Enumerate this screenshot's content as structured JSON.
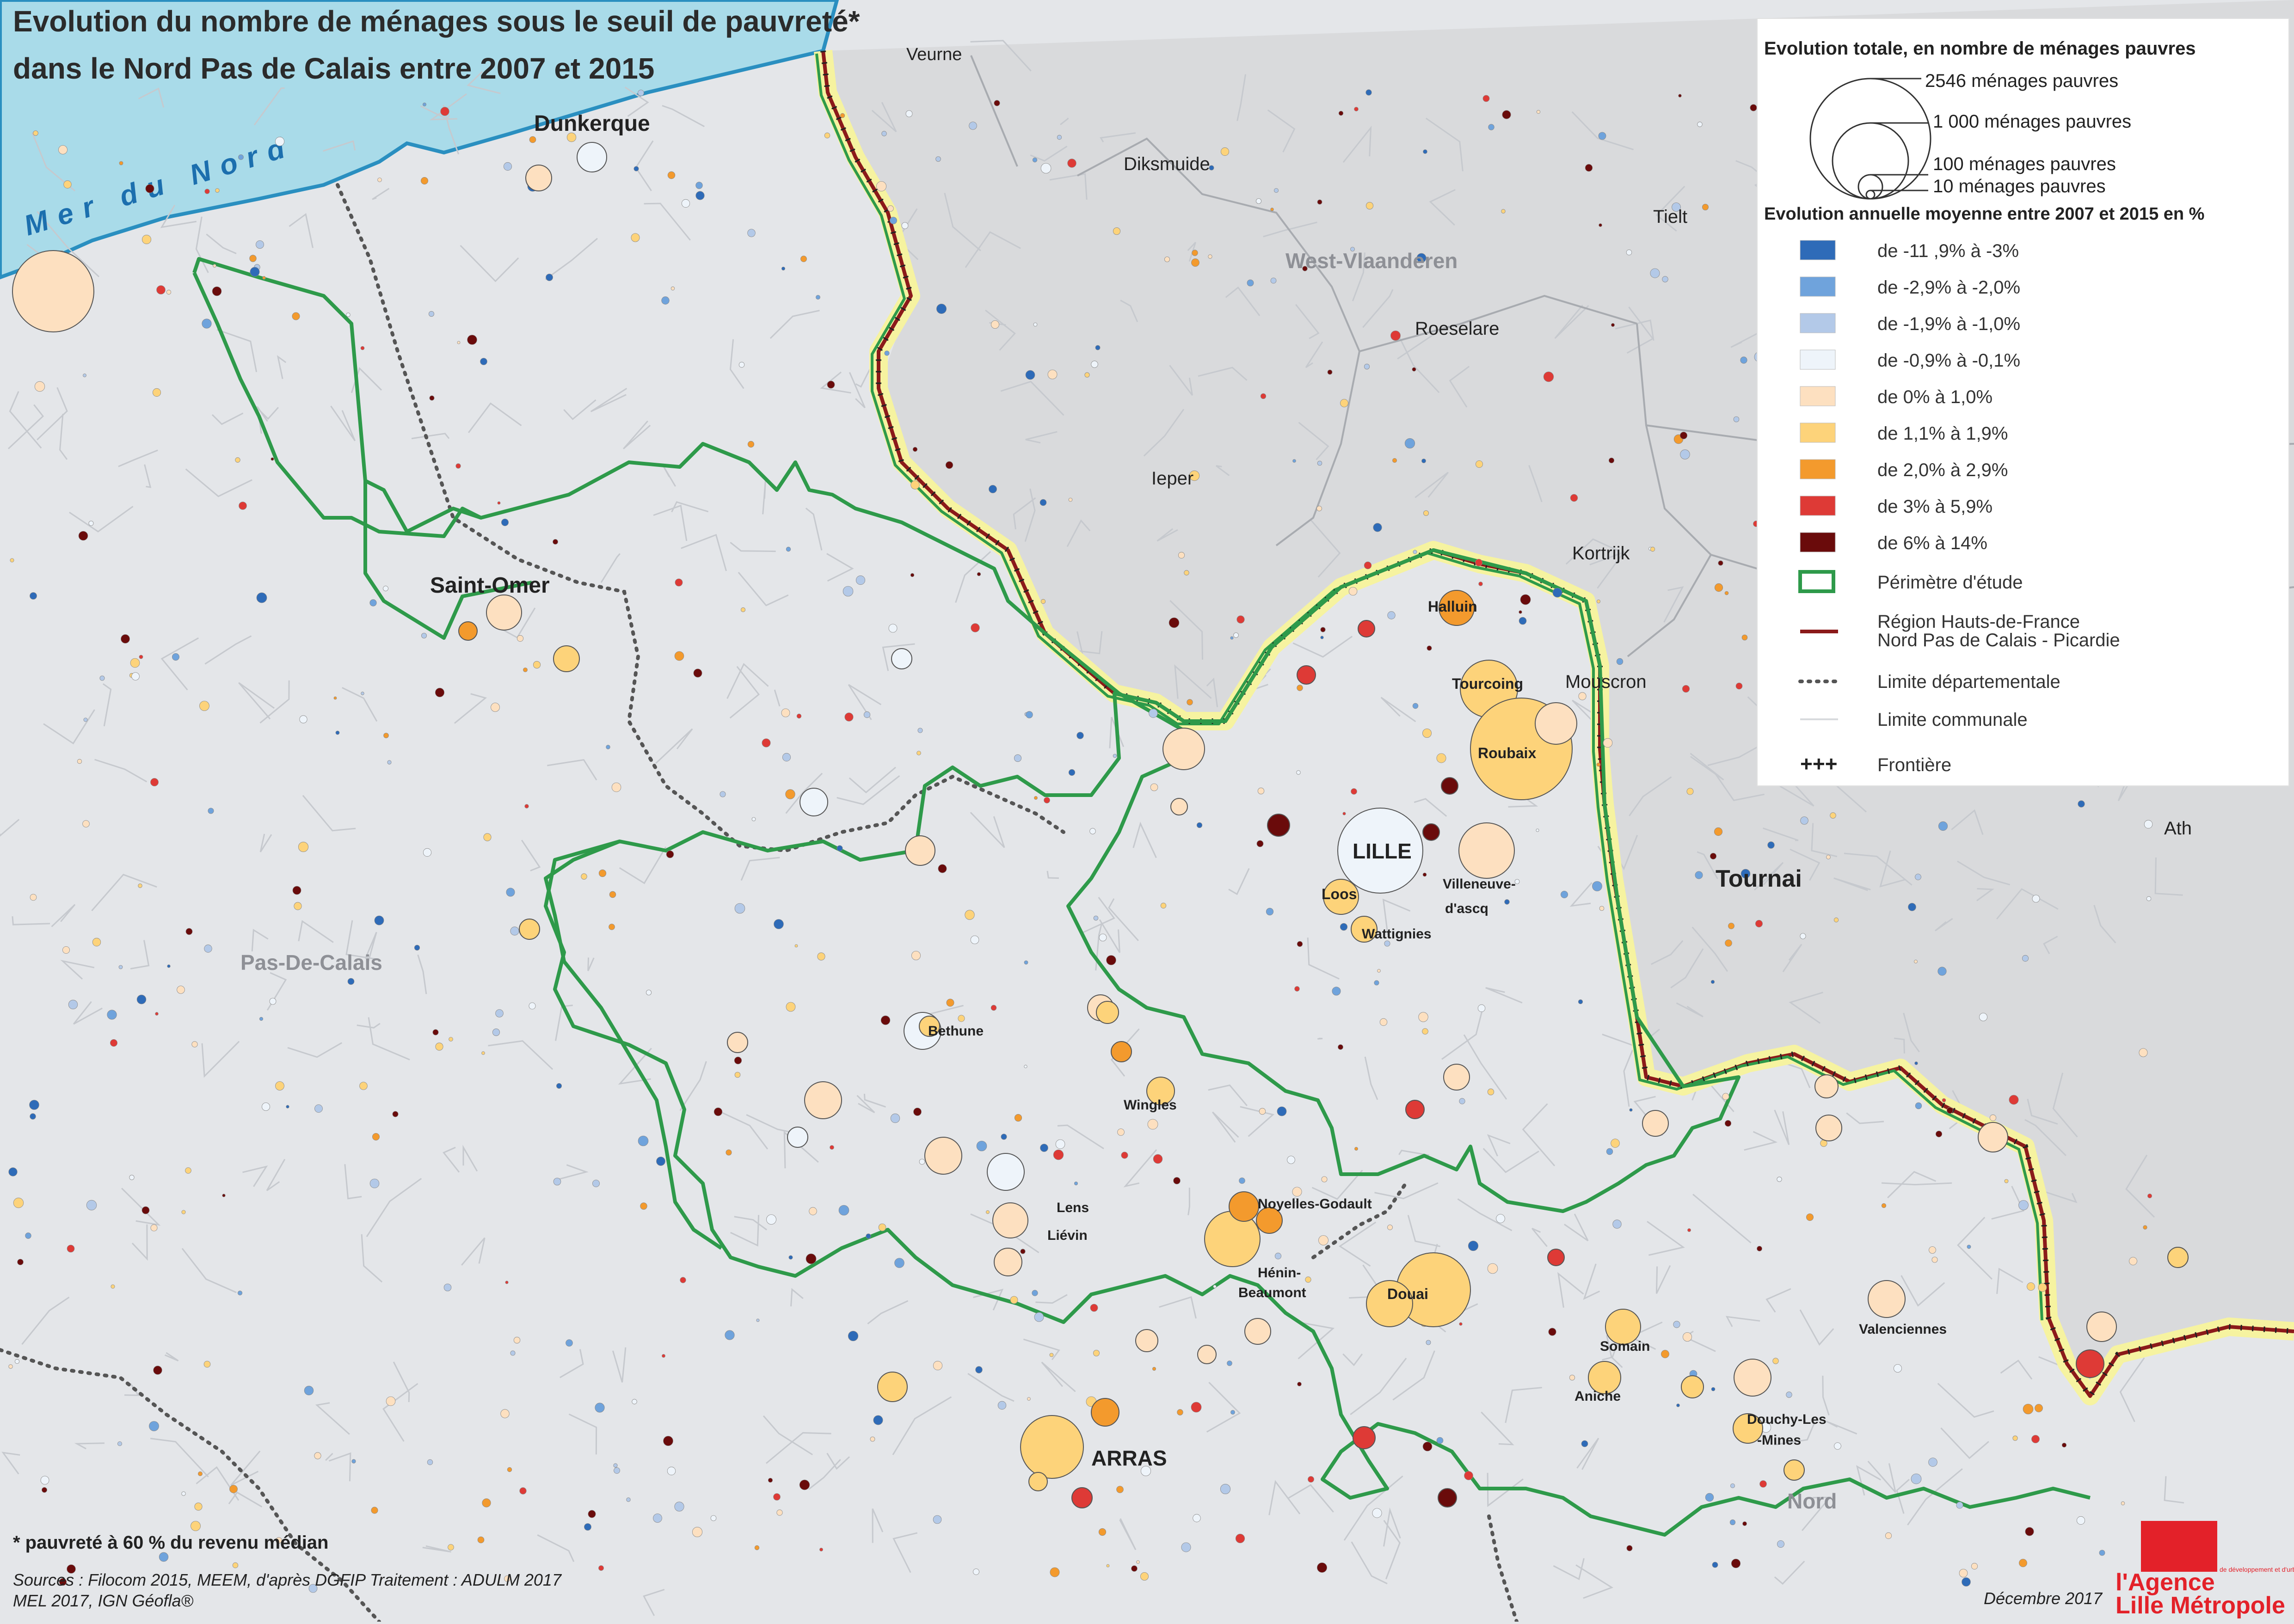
{
  "title": {
    "line1": "Evolution du nombre de ménages sous le seuil de pauvreté*",
    "line2": "dans le Nord Pas de Calais entre 2007 et 2015"
  },
  "sea_label": "Mer du Nord",
  "place_labels": [
    {
      "id": "veurne",
      "text": "Veurne",
      "kind": "belgian"
    },
    {
      "id": "diksmuide",
      "text": "Diksmuide",
      "kind": "belgian"
    },
    {
      "id": "tielt",
      "text": "Tielt",
      "kind": "belgian"
    },
    {
      "id": "west-vlaanderen",
      "text": "West-Vlaanderen",
      "kind": "region"
    },
    {
      "id": "roeselare",
      "text": "Roeselare",
      "kind": "belgian"
    },
    {
      "id": "ieper",
      "text": "Ieper",
      "kind": "belgian"
    },
    {
      "id": "kortrijk",
      "text": "Kortrijk",
      "kind": "belgian"
    },
    {
      "id": "mouscron",
      "text": "Mouscron",
      "kind": "belgian"
    },
    {
      "id": "tournai",
      "text": "Tournai",
      "kind": "belgian-large"
    },
    {
      "id": "ath",
      "text": "Ath",
      "kind": "belgian"
    },
    {
      "id": "pas-de-calais",
      "text": "Pas-De-Calais",
      "kind": "region"
    },
    {
      "id": "nord",
      "text": "Nord",
      "kind": "region"
    },
    {
      "id": "dunkerque",
      "text": "Dunkerque",
      "kind": "city"
    },
    {
      "id": "saint-omer",
      "text": "Saint-Omer",
      "kind": "city"
    },
    {
      "id": "halluin",
      "text": "Halluin",
      "kind": "town"
    },
    {
      "id": "tourcoing",
      "text": "Tourcoing",
      "kind": "town"
    },
    {
      "id": "roubaix",
      "text": "Roubaix",
      "kind": "town"
    },
    {
      "id": "lille",
      "text": "LILLE",
      "kind": "capital"
    },
    {
      "id": "loos",
      "text": "Loos",
      "kind": "town"
    },
    {
      "id": "villeneuve",
      "text": "Villeneuve-",
      "kind": "town"
    },
    {
      "id": "villeneuve2",
      "text": "d'ascq",
      "kind": "town"
    },
    {
      "id": "wattignies",
      "text": "Wattignies",
      "kind": "town"
    },
    {
      "id": "bethune",
      "text": "Bethune",
      "kind": "town"
    },
    {
      "id": "wingles",
      "text": "Wingles",
      "kind": "town"
    },
    {
      "id": "lens",
      "text": "Lens",
      "kind": "town"
    },
    {
      "id": "lievin",
      "text": "Liévin",
      "kind": "town"
    },
    {
      "id": "noyelles",
      "text": "Noyelles-Godault",
      "kind": "town"
    },
    {
      "id": "henin",
      "text": "Hénin-",
      "kind": "town"
    },
    {
      "id": "henin2",
      "text": "Beaumont",
      "kind": "town"
    },
    {
      "id": "douai",
      "text": "Douai",
      "kind": "town"
    },
    {
      "id": "somain",
      "text": "Somain",
      "kind": "town"
    },
    {
      "id": "aniche",
      "text": "Aniche",
      "kind": "town"
    },
    {
      "id": "valenciennes",
      "text": "Valenciennes",
      "kind": "town"
    },
    {
      "id": "douchy",
      "text": "Douchy-Les",
      "kind": "town"
    },
    {
      "id": "douchy2",
      "text": "-Mines",
      "kind": "town"
    },
    {
      "id": "arras",
      "text": "ARRAS",
      "kind": "city-large"
    }
  ],
  "legend": {
    "size_title": "Evolution totale, en nombre de ménages pauvres",
    "size_labels": [
      "2546 ménages pauvres",
      "1 000  ménages pauvres",
      "100 ménages pauvres",
      "10  ménages pauvres"
    ],
    "color_title": "Evolution annuelle moyenne entre 2007 et 2015 en %",
    "classes": [
      {
        "label": "de -11 ,9% à -3%",
        "color": "#2e6bb8"
      },
      {
        "label": "de -2,9% à -2,0%",
        "color": "#6fa3dc"
      },
      {
        "label": "de -1,9% à -1,0%",
        "color": "#b3c9e8"
      },
      {
        "label": "de -0,9% à -0,1%",
        "color": "#eef4fa"
      },
      {
        "label": "de 0% à 1,0%",
        "color": "#fde0c0"
      },
      {
        "label": "de 1,1% à 1,9%",
        "color": "#fdd37a"
      },
      {
        "label": "de 2,0% à 2,9%",
        "color": "#f39a2d"
      },
      {
        "label": "de 3% à 5,9%",
        "color": "#de3a36"
      },
      {
        "label": "de 6% à 14%",
        "color": "#6a0b0b"
      }
    ],
    "perimetre": "Périmètre d'étude",
    "region_line1": "Région Hauts-de-France",
    "region_line2": "Nord Pas de Calais - Picardie",
    "limite_dep": "Limite départementale",
    "limite_com": "Limite communale",
    "frontiere": "Frontière"
  },
  "colors": {
    "sea": "#a9dbe9",
    "land": "#e4e6e9",
    "belgium": "#d9dadc",
    "perimeter": "#2e9a4a",
    "region": "#8b1a1a",
    "border_halo": "#f6f3a0"
  },
  "footnote": "* pauvreté à 60 % du revenu médian",
  "sources_line1": "Sources : Filocom 2015, MEEM, d'après DGFIP   Traitement : ADULM 2017",
  "sources_line2": "MEL 2017, IGN Géofla®",
  "date": "Décembre 2017",
  "logo": {
    "line1": "l'Agence",
    "line2": "Lille Métropole",
    "small": "de développement et d'urbanisme de"
  }
}
